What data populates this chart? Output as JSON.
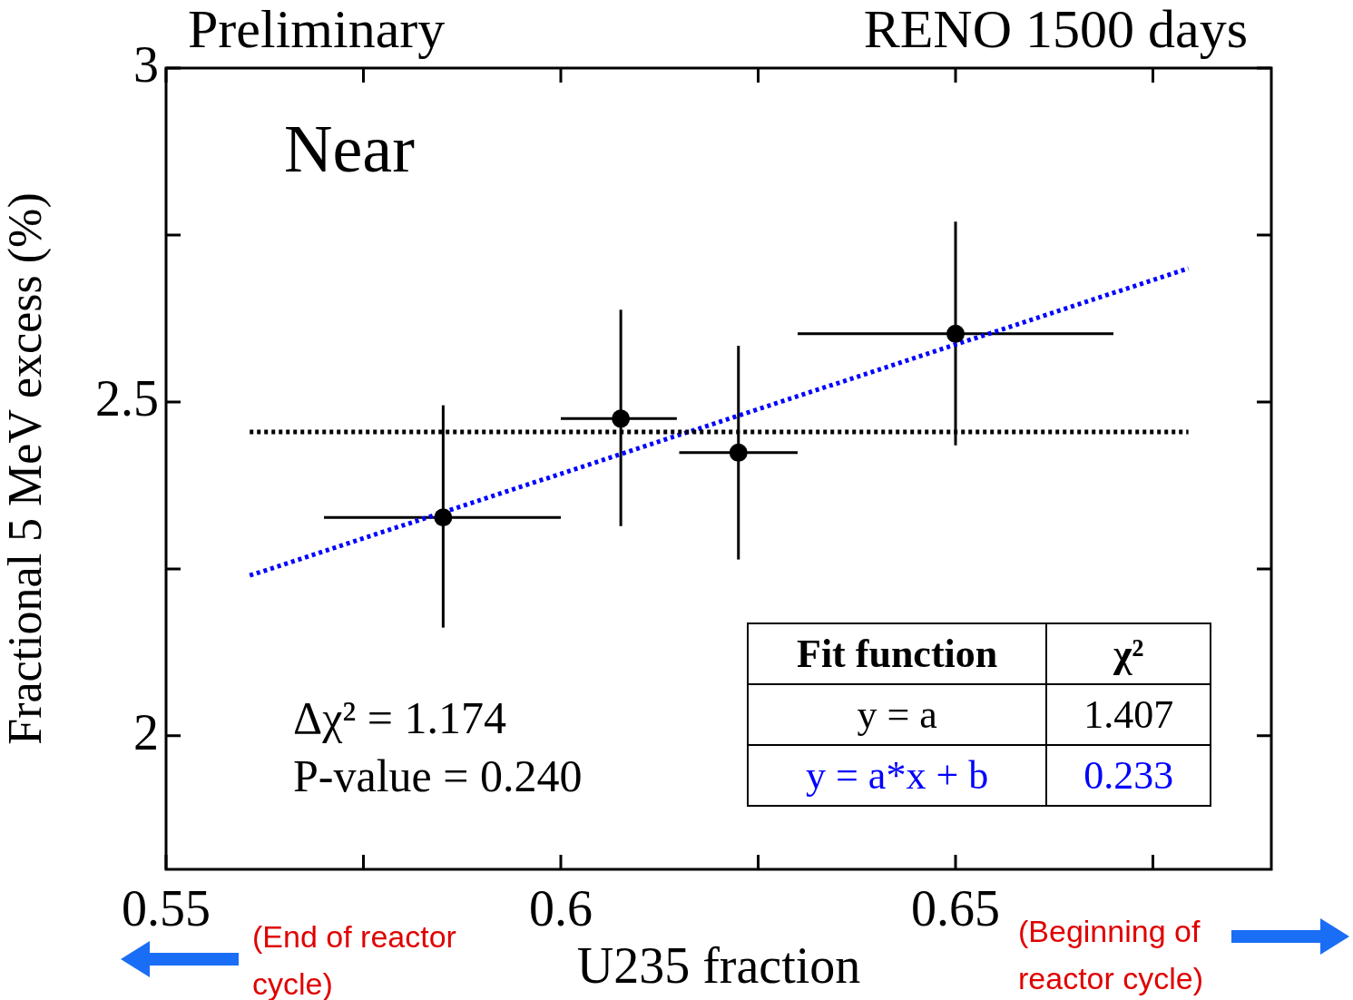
{
  "chart_data": {
    "type": "scatter",
    "title": "Preliminary",
    "subtitle": "RENO 1500 days",
    "xlabel": "U235 fraction",
    "ylabel": "Fractional 5 MeV excess (%)",
    "xlim": [
      0.55,
      0.69
    ],
    "xticks": [
      0.55,
      {
        "value": 0.575,
        "label": null
      },
      0.6,
      {
        "value": 0.625,
        "label": null
      },
      0.65,
      {
        "value": 0.675,
        "label": null
      }
    ],
    "ylim": [
      1.8,
      3
    ],
    "yticks": [
      2,
      {
        "value": 2.25,
        "label": null
      },
      2.5,
      {
        "value": 2.75,
        "label": null
      },
      3
    ],
    "grid": false,
    "legend": false,
    "series": [
      {
        "color": "#000000",
        "marker": "circle",
        "x": [
          0.5851,
          0.6076,
          0.6225,
          0.65
        ],
        "values": [
          2.327,
          2.475,
          2.424,
          2.602
        ],
        "errors": [
          [
            2.162,
            2.495
          ],
          [
            2.314,
            2.638
          ],
          [
            2.264,
            2.584
          ],
          [
            2.435,
            2.77
          ]
        ],
        "xerrors": [
          [
            0.57,
            0.6
          ],
          [
            0.6,
            0.6147
          ],
          [
            0.615,
            0.63
          ],
          [
            0.63,
            0.67
          ]
        ]
      },
      {
        "type": "line",
        "color": "#000000",
        "line_style": "dotted",
        "x": [
          0.5606,
          0.6795
        ],
        "values": [
          2.455,
          2.455
        ]
      },
      {
        "type": "line",
        "color": "#0000ff",
        "line_style": "dotted",
        "x": [
          0.5606,
          0.6795
        ],
        "values": [
          2.24,
          2.7
        ]
      }
    ],
    "annotations": [
      "Near",
      "Δχ² = 1.174",
      "P-value = 0.240",
      "Fit function",
      "χ²",
      "y = a",
      "1.407",
      "y = a*x + b",
      "0.233",
      "(End of reactor cycle)",
      "(Beginning of reactor cycle)"
    ]
  }
}
